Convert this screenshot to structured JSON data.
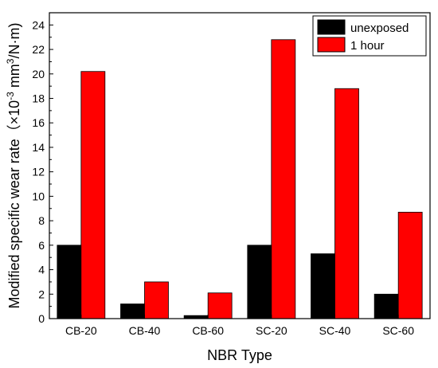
{
  "chart_data": {
    "type": "bar",
    "categories": [
      "CB-20",
      "CB-40",
      "CB-60",
      "SC-20",
      "SC-40",
      "SC-60"
    ],
    "series": [
      {
        "name": "unexposed",
        "color": "#000000",
        "values": [
          6.0,
          1.2,
          0.25,
          6.0,
          5.3,
          2.0
        ]
      },
      {
        "name": "1 hour",
        "color": "#ff0000",
        "values": [
          20.2,
          3.0,
          2.1,
          22.8,
          18.8,
          8.7
        ]
      }
    ],
    "xlabel": "NBR Type",
    "ylabel": "Modified specific wear rate（×10",
    "ylabel_exp1": "-3",
    "ylabel_unit": " mm",
    "ylabel_exp2": "3",
    "ylabel_tail": "/N·m)",
    "ylim": [
      0,
      25
    ],
    "yticks": [
      "0",
      "2",
      "4",
      "6",
      "8",
      "10",
      "12",
      "14",
      "16",
      "18",
      "20",
      "22",
      "24"
    ],
    "grid": false,
    "legend_position": "top-right"
  }
}
